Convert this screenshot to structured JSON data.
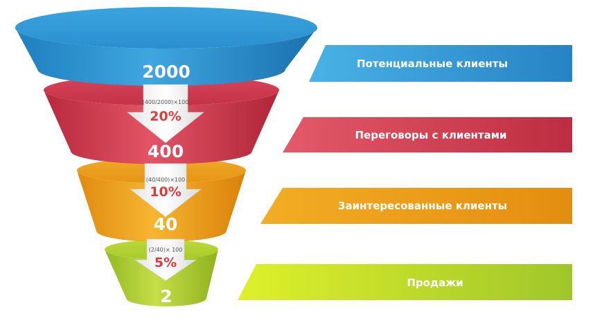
{
  "colors": {
    "stage1": "#3a9ed8",
    "stage2": "#d94256",
    "stage3": "#f0a21c",
    "stage4": "#b4d234",
    "percent": "#e03a3a"
  },
  "stages": [
    {
      "label": "Потенциальные клиенты",
      "count": "2000"
    },
    {
      "label": "Переговоры с клиентами",
      "count": "400"
    },
    {
      "label": "Заинтересованные клиенты",
      "count": "40"
    },
    {
      "label": "Продажи",
      "count": "2"
    }
  ],
  "conversions": [
    {
      "formula": "(400/2000)×100",
      "percent": "20%"
    },
    {
      "formula": "(40/400)×100",
      "percent": "10%"
    },
    {
      "formula": "(2/40)× 100",
      "percent": "5%"
    }
  ]
}
